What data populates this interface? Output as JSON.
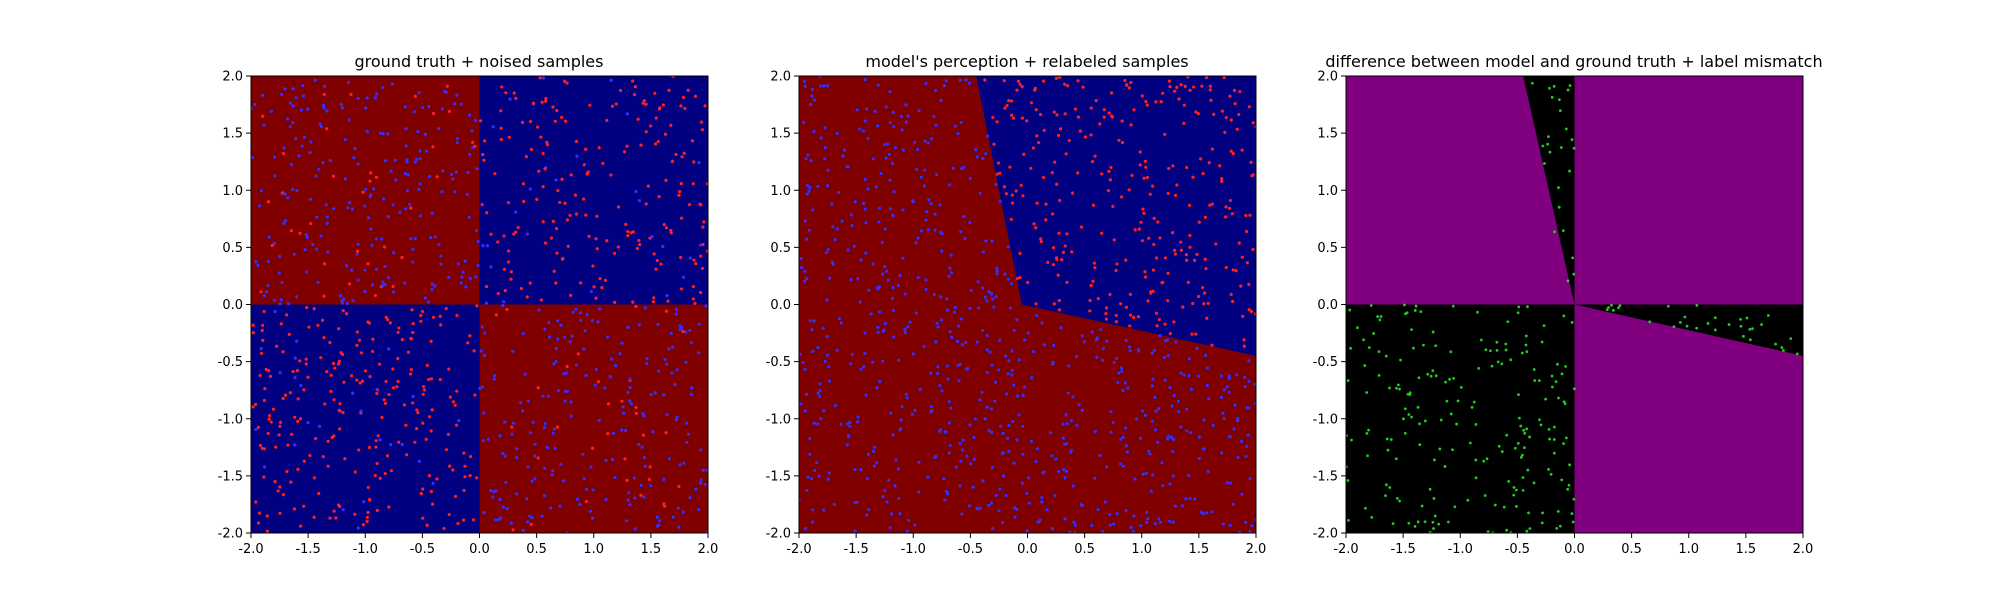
{
  "chart_data": [
    {
      "type": "scatter",
      "title": "ground truth + noised samples",
      "xlabel": "",
      "ylabel": "",
      "xlim": [
        -2.0,
        2.0
      ],
      "ylim": [
        -2.0,
        2.0
      ],
      "xticks": [
        "-2.0",
        "-1.5",
        "-1.0",
        "-0.5",
        "0.0",
        "0.5",
        "1.0",
        "1.5",
        "2.0"
      ],
      "yticks": [
        "-2.0",
        "-1.5",
        "-1.0",
        "-0.5",
        "0.0",
        "0.5",
        "1.0",
        "1.5",
        "2.0"
      ],
      "grid": false,
      "background": {
        "description": "quadrant regions",
        "regions": [
          {
            "quadrant": "x<0, y>0",
            "color": "#800000"
          },
          {
            "quadrant": "x>0, y>0",
            "color": "#000080"
          },
          {
            "quadrant": "x<0, y<0",
            "color": "#000080"
          },
          {
            "quadrant": "x>0, y<0",
            "color": "#800000"
          }
        ]
      },
      "series": [
        {
          "color": "#ff2020",
          "marker_count": 520
        },
        {
          "color": "#3030ff",
          "marker_count": 520
        }
      ]
    },
    {
      "type": "scatter",
      "title": "model's perception + relabeled samples",
      "xlabel": "",
      "ylabel": "",
      "xlim": [
        -2.0,
        2.0
      ],
      "ylim": [
        -2.0,
        2.0
      ],
      "xticks": [
        "-2.0",
        "-1.5",
        "-1.0",
        "-0.5",
        "0.0",
        "0.5",
        "1.0",
        "1.5",
        "2.0"
      ],
      "yticks": [
        "-2.0",
        "-1.5",
        "-1.0",
        "-0.5",
        "0.0",
        "0.5",
        "1.0",
        "1.5",
        "2.0"
      ],
      "grid": false,
      "background": {
        "description": "model decision regions: blue wedge in upper right bounded by line from (-0.45, 2.0) to (-0.05, 0.0) and line from (-0.05, 0.0) to (2.0, -0.45); red elsewhere",
        "boundary_points": [
          [
            -0.45,
            2.0
          ],
          [
            -0.05,
            0.0
          ],
          [
            2.0,
            -0.45
          ]
        ],
        "inside_color": "#000080",
        "outside_color": "#800000"
      },
      "series": [
        {
          "color": "#ff2020",
          "marker_count": 420
        },
        {
          "color": "#3030ff",
          "marker_count": 620
        }
      ]
    },
    {
      "type": "scatter",
      "title": "difference between model and ground truth + label mismatch",
      "xlabel": "",
      "ylabel": "",
      "xlim": [
        -2.0,
        2.0
      ],
      "ylim": [
        -2.0,
        2.0
      ],
      "xticks": [
        "-2.0",
        "-1.5",
        "-1.0",
        "-0.5",
        "0.0",
        "0.5",
        "1.0",
        "1.5",
        "2.0"
      ],
      "yticks": [
        "-2.0",
        "-1.5",
        "-1.0",
        "-0.5",
        "0.0",
        "0.5",
        "1.0",
        "1.5",
        "2.0"
      ],
      "grid": false,
      "background": {
        "description": "black where model differs from ground truth, purple where they agree",
        "agree_color": "#800080",
        "disagree_color": "#000000",
        "disagree_regions": [
          [
            [
              -2.0,
              0.0
            ],
            [
              0.0,
              0.0
            ],
            [
              0.0,
              -2.0
            ],
            [
              -2.0,
              -2.0
            ]
          ],
          [
            [
              -0.45,
              2.0
            ],
            [
              0.0,
              2.0
            ],
            [
              0.0,
              0.0
            ]
          ],
          [
            [
              0.0,
              0.0
            ],
            [
              2.0,
              0.0
            ],
            [
              2.0,
              -0.45
            ]
          ]
        ]
      },
      "series": [
        {
          "color": "#22cc22",
          "marker_count": 260
        }
      ]
    }
  ]
}
